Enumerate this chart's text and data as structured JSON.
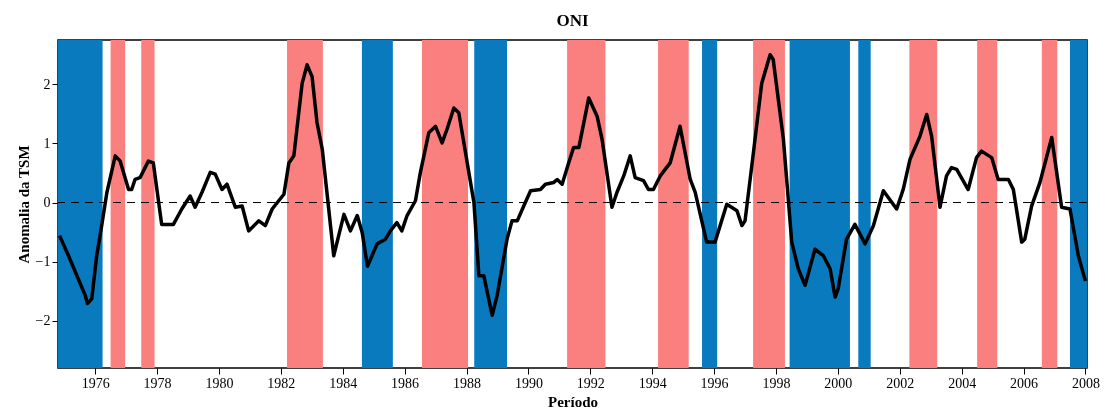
{
  "chart_data": {
    "type": "line",
    "title": "ONI",
    "xlabel": "Período",
    "ylabel": "Anomalia da TSM",
    "xlim": [
      1974.8,
      2008.05
    ],
    "ylim": [
      -2.8,
      2.75
    ],
    "xticks": [
      1976,
      1978,
      1980,
      1982,
      1984,
      1986,
      1988,
      1990,
      1992,
      1994,
      1996,
      1998,
      2000,
      2002,
      2004,
      2006,
      2008
    ],
    "yticks": [
      -2,
      -1,
      0,
      1,
      2
    ],
    "grid": false,
    "line_style": "solid",
    "marker": "none",
    "series": [
      {
        "color": "#000000",
        "x": [
          1974.85,
          1975.14,
          1975.68,
          1975.75,
          1975.89,
          1976.05,
          1976.16,
          1976.38,
          1976.65,
          1976.81,
          1977.08,
          1977.18,
          1977.29,
          1977.45,
          1977.72,
          1977.88,
          1978.15,
          1978.53,
          1978.8,
          1979.07,
          1979.23,
          1979.45,
          1979.72,
          1979.88,
          1980.1,
          1980.26,
          1980.53,
          1980.75,
          1980.96,
          1981.29,
          1981.5,
          1981.72,
          1982.1,
          1982.26,
          1982.42,
          1982.69,
          1982.85,
          1983.01,
          1983.17,
          1983.34,
          1983.71,
          1984.04,
          1984.25,
          1984.47,
          1984.63,
          1984.8,
          1985.11,
          1985.38,
          1985.54,
          1985.75,
          1985.91,
          1986.08,
          1986.35,
          1986.51,
          1986.78,
          1987.0,
          1987.21,
          1987.37,
          1987.59,
          1987.75,
          1988.24,
          1988.4,
          1988.56,
          1988.83,
          1988.99,
          1989.31,
          1989.47,
          1989.64,
          1989.85,
          1990.07,
          1990.39,
          1990.55,
          1990.82,
          1990.93,
          1991.09,
          1991.3,
          1991.46,
          1991.63,
          1991.95,
          1992.22,
          1992.38,
          1992.7,
          1992.86,
          1993.08,
          1993.29,
          1993.45,
          1993.72,
          1993.88,
          1994.04,
          1994.26,
          1994.58,
          1994.9,
          1995.23,
          1995.39,
          1995.76,
          1996.03,
          1996.41,
          1996.74,
          1996.9,
          1997.0,
          1997.27,
          1997.54,
          1997.81,
          1997.91,
          1998.24,
          1998.51,
          1998.72,
          1998.94,
          1999.26,
          1999.53,
          1999.75,
          1999.91,
          2000.01,
          2000.28,
          2000.55,
          2000.88,
          2001.15,
          2001.47,
          2001.9,
          2002.11,
          2002.33,
          2002.65,
          2002.87,
          2003.03,
          2003.3,
          2003.51,
          2003.67,
          2003.84,
          2004.21,
          2004.48,
          2004.64,
          2004.97,
          2005.18,
          2005.51,
          2005.67,
          2005.94,
          2006.04,
          2006.26,
          2006.53,
          2006.91,
          2007.23,
          2007.5,
          2007.77,
          2008.0
        ],
        "values": [
          -0.56,
          -0.9,
          -1.57,
          -1.71,
          -1.63,
          -0.9,
          -0.56,
          0.17,
          0.79,
          0.7,
          0.22,
          0.22,
          0.39,
          0.42,
          0.7,
          0.67,
          -0.37,
          -0.37,
          -0.11,
          0.11,
          -0.08,
          0.17,
          0.51,
          0.48,
          0.22,
          0.31,
          -0.08,
          -0.06,
          -0.48,
          -0.31,
          -0.39,
          -0.11,
          0.14,
          0.67,
          0.79,
          2.02,
          2.33,
          2.13,
          1.35,
          0.9,
          -0.9,
          -0.2,
          -0.48,
          -0.22,
          -0.51,
          -1.08,
          -0.7,
          -0.62,
          -0.48,
          -0.34,
          -0.48,
          -0.22,
          0.03,
          0.51,
          1.18,
          1.29,
          1.01,
          1.24,
          1.6,
          1.52,
          0,
          -1.24,
          -1.24,
          -1.91,
          -1.57,
          -0.62,
          -0.31,
          -0.31,
          -0.06,
          0.2,
          0.22,
          0.31,
          0.34,
          0.39,
          0.31,
          0.67,
          0.93,
          0.93,
          1.77,
          1.46,
          1.07,
          -0.08,
          0.17,
          0.45,
          0.79,
          0.42,
          0.37,
          0.22,
          0.22,
          0.45,
          0.67,
          1.29,
          0.39,
          0.17,
          -0.67,
          -0.67,
          -0.03,
          -0.14,
          -0.39,
          -0.31,
          0.84,
          2.02,
          2.5,
          2.42,
          1.07,
          -0.67,
          -1.12,
          -1.4,
          -0.79,
          -0.9,
          -1.12,
          -1.6,
          -1.46,
          -0.62,
          -0.37,
          -0.7,
          -0.39,
          0.2,
          -0.11,
          0.22,
          0.73,
          1.12,
          1.49,
          1.12,
          -0.08,
          0.45,
          0.59,
          0.56,
          0.22,
          0.76,
          0.87,
          0.76,
          0.39,
          0.39,
          0.22,
          -0.67,
          -0.62,
          -0.06,
          0.34,
          1.1,
          -0.08,
          -0.11,
          -0.9,
          -1.33
        ]
      }
    ],
    "ref_lines": [
      {
        "axis": "y",
        "value": 0,
        "color": "#000000",
        "line_style": "dashed"
      }
    ],
    "bands": [
      {
        "axis": "x",
        "from": 1974.8,
        "to": 1976.24,
        "color": "#0a7abf"
      },
      {
        "axis": "x",
        "from": 1976.5,
        "to": 1976.97,
        "color": "#fa8080"
      },
      {
        "axis": "x",
        "from": 1977.49,
        "to": 1977.92,
        "color": "#fa8080"
      },
      {
        "axis": "x",
        "from": 1982.2,
        "to": 1983.36,
        "color": "#fa8080"
      },
      {
        "axis": "x",
        "from": 1984.62,
        "to": 1985.62,
        "color": "#0a7abf"
      },
      {
        "axis": "x",
        "from": 1986.56,
        "to": 1988.05,
        "color": "#fa8080"
      },
      {
        "axis": "x",
        "from": 1988.25,
        "to": 1989.31,
        "color": "#0a7abf"
      },
      {
        "axis": "x",
        "from": 1991.25,
        "to": 1992.49,
        "color": "#fa8080"
      },
      {
        "axis": "x",
        "from": 1994.19,
        "to": 1995.18,
        "color": "#fa8080"
      },
      {
        "axis": "x",
        "from": 1995.61,
        "to": 1996.1,
        "color": "#0a7abf"
      },
      {
        "axis": "x",
        "from": 1997.26,
        "to": 1998.29,
        "color": "#fa8080"
      },
      {
        "axis": "x",
        "from": 1998.44,
        "to": 2000.39,
        "color": "#0a7abf"
      },
      {
        "axis": "x",
        "from": 2000.66,
        "to": 2001.06,
        "color": "#0a7abf"
      },
      {
        "axis": "x",
        "from": 2002.31,
        "to": 2003.21,
        "color": "#fa8080"
      },
      {
        "axis": "x",
        "from": 2004.5,
        "to": 2005.15,
        "color": "#fa8080"
      },
      {
        "axis": "x",
        "from": 2006.59,
        "to": 2007.09,
        "color": "#fa8080"
      },
      {
        "axis": "x",
        "from": 2007.5,
        "to": 2008.05,
        "color": "#0a7abf"
      }
    ]
  }
}
